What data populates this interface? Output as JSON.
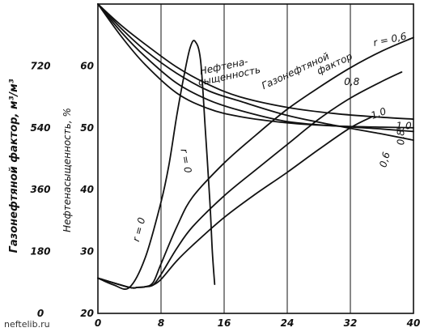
{
  "chart_data": {
    "type": "line",
    "xlabel": "",
    "ylabel_left": "Газонефтяной фактор, м³/м³",
    "ylabel_right": "Нефтенасыщенность, %",
    "x_ticks": [
      "0",
      "8",
      "16",
      "24",
      "32",
      "40"
    ],
    "y_right_ticks": [
      "20",
      "30",
      "40",
      "50",
      "60"
    ],
    "y_left_ticks": [
      "0",
      "180",
      "360",
      "540",
      "720"
    ],
    "xlim": [
      0,
      40
    ],
    "ylim_right": [
      20,
      70
    ],
    "ylim_left": [
      0,
      900
    ],
    "grid": "vertical lines at x ticks",
    "group_labels": {
      "oil_saturation": "Нефтенасыщенность",
      "gas_oil_ratio": "Газонефтяной фактор"
    },
    "series": [
      {
        "group": "oil_saturation",
        "name": "r = 0,6",
        "x": [
          0,
          3,
          6,
          10,
          14,
          18,
          24,
          30,
          36,
          40
        ],
        "y": [
          70,
          66.5,
          63.5,
          59.8,
          57,
          55,
          53.3,
          52.3,
          51.7,
          51.4
        ]
      },
      {
        "group": "oil_saturation",
        "name": "r = 0",
        "x": [
          0,
          3,
          6,
          10,
          14,
          18,
          24,
          30,
          36,
          40
        ],
        "y": [
          70,
          66,
          62.5,
          58.8,
          56,
          54.3,
          52,
          50.4,
          49,
          48
        ]
      },
      {
        "group": "oil_saturation",
        "name": "r = 0,8",
        "x": [
          0,
          3,
          6,
          10,
          14,
          18,
          24,
          30,
          36,
          40
        ],
        "y": [
          70,
          65.4,
          61.5,
          57.2,
          54.5,
          52.8,
          51,
          50.3,
          49.8,
          49.4
        ]
      },
      {
        "group": "oil_saturation",
        "name": "r = 1,0",
        "x": [
          0,
          3,
          6,
          10,
          14,
          18,
          24,
          30,
          36,
          40
        ],
        "y": [
          70,
          64.7,
          60.2,
          55.6,
          53.1,
          51.8,
          50.8,
          50.3,
          50.1,
          50
        ]
      },
      {
        "group": "gas_oil_ratio",
        "name": "r = 0",
        "x": [
          0,
          2,
          4,
          6,
          8,
          9,
          10,
          11,
          11.7,
          12.3,
          13,
          13.6,
          14.2,
          14.5,
          14.8
        ],
        "y": [
          25.7,
          24.6,
          24.2,
          29,
          38,
          44,
          52,
          59,
          63,
          64,
          61,
          50,
          38,
          30,
          24.7
        ]
      },
      {
        "group": "gas_oil_ratio",
        "name": "r = 0,6",
        "x": [
          0,
          4,
          5,
          6,
          7,
          8,
          10,
          12,
          16,
          20,
          24,
          28,
          32,
          36,
          40
        ],
        "y": [
          25.7,
          24.2,
          24.2,
          24.3,
          25,
          28,
          34,
          38.8,
          44.3,
          48.8,
          53,
          56.5,
          59.7,
          62.4,
          64.6
        ]
      },
      {
        "group": "gas_oil_ratio",
        "name": "r = 0,8",
        "x": [
          0,
          4,
          5,
          6,
          7,
          8,
          10,
          12,
          16,
          20,
          24,
          28,
          32,
          36,
          38.5
        ],
        "y": [
          25.7,
          24.2,
          24.2,
          24.3,
          24.6,
          26.3,
          30.5,
          34,
          39,
          43.2,
          47.3,
          51.4,
          54.8,
          57.5,
          59
        ]
      },
      {
        "group": "gas_oil_ratio",
        "name": "r = 1,0",
        "x": [
          0,
          4,
          5,
          6,
          7,
          8,
          10,
          12,
          16,
          20,
          24,
          28,
          32,
          34.8
        ],
        "y": [
          25.7,
          24.2,
          24.2,
          24.3,
          24.6,
          25.5,
          28.5,
          31,
          35.5,
          39.3,
          42.8,
          46.5,
          50,
          51.8
        ]
      }
    ],
    "annotations": [
      {
        "text": "r = 0,6",
        "x": 35,
        "y": 63.2,
        "rotate": -12
      },
      {
        "text": "0,8",
        "x": 31.2,
        "y": 56.9,
        "rotate": 0
      },
      {
        "text": "1,0",
        "x": 34.8,
        "y": 51.4,
        "rotate": -20
      },
      {
        "text": "1,0",
        "x": 37.8,
        "y": 49.8,
        "rotate": 0
      },
      {
        "text": "0,8",
        "x": 38.8,
        "y": 47.2,
        "rotate": -90
      },
      {
        "text": "0,6",
        "x": 36.5,
        "y": 43.5,
        "rotate": -75
      },
      {
        "text": "r = 0",
        "x": 10.5,
        "y": 46.5,
        "rotate": 80
      },
      {
        "text": "r = 0",
        "x": 5.2,
        "y": 31.5,
        "rotate": -75
      },
      {
        "text": "Нефтена-",
        "x": 13,
        "y": 58.6,
        "rotate": -12
      },
      {
        "text": "сыщенность",
        "x": 12.8,
        "y": 56.8,
        "rotate": -12
      }
    ],
    "gas_label_rotated": {
      "text": "Газонефтяной",
      "x": 21,
      "y": 56.2,
      "rotate": -25
    },
    "gas_label_rotated2": {
      "text": "фактор",
      "x": 28,
      "y": 58.6,
      "rotate": -25
    }
  },
  "watermark": "neftelib.ru"
}
